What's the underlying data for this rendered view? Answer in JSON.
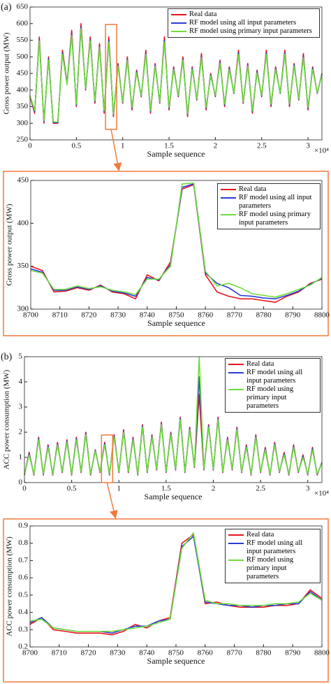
{
  "chart_data": [
    {
      "type": "line",
      "label": "(a)",
      "xlabel": "Sample sequence",
      "ylabel": "Gross power output (MW)",
      "x_offset_label": "×10⁴",
      "xlim": [
        0,
        31500
      ],
      "ylim": [
        250,
        650
      ],
      "xticks": [
        0,
        {
          "value": 5000,
          "label": "0.5"
        },
        {
          "value": 10000,
          "label": "1"
        },
        {
          "value": 15000,
          "label": "1.5"
        },
        {
          "value": 20000,
          "label": "2"
        },
        {
          "value": 25000,
          "label": "2.5"
        },
        {
          "value": 30000,
          "label": "3"
        }
      ],
      "yticks": [
        250,
        300,
        350,
        400,
        450,
        500,
        550,
        600,
        650
      ],
      "x": [
        0,
        500,
        1000,
        1500,
        2000,
        2500,
        3000,
        3500,
        4000,
        4500,
        5000,
        5500,
        6000,
        6500,
        7000,
        7500,
        8000,
        8500,
        9000,
        9500,
        10000,
        10500,
        11000,
        11500,
        12000,
        12500,
        13000,
        13500,
        14000,
        14500,
        15000,
        15500,
        16000,
        16500,
        17000,
        17500,
        18000,
        18500,
        19000,
        19500,
        20000,
        20500,
        21000,
        21500,
        22000,
        22500,
        23000,
        23500,
        24000,
        24500,
        25000,
        25500,
        26000,
        26500,
        27000,
        27500,
        28000,
        28500,
        29000,
        29500,
        30000,
        30500,
        31000,
        31500
      ],
      "series": [
        {
          "name": "Real data",
          "color": "#e8141c",
          "values": [
            380,
            330,
            560,
            300,
            500,
            300,
            300,
            520,
            420,
            580,
            350,
            600,
            400,
            560,
            360,
            540,
            330,
            560,
            320,
            480,
            360,
            500,
            340,
            460,
            380,
            520,
            330,
            480,
            360,
            560,
            340,
            470,
            380,
            500,
            320,
            470,
            370,
            510,
            340,
            450,
            380,
            490,
            350,
            470,
            390,
            520,
            360,
            480,
            330,
            460,
            380,
            520,
            350,
            470,
            390,
            520,
            350,
            480,
            370,
            510,
            340,
            470,
            390,
            450
          ]
        },
        {
          "name": "RF model using all input parameters",
          "color": "#2b3bd6",
          "values": [
            382,
            335,
            552,
            305,
            495,
            302,
            302,
            512,
            418,
            570,
            355,
            590,
            402,
            552,
            365,
            532,
            335,
            550,
            325,
            475,
            362,
            494,
            345,
            456,
            382,
            512,
            335,
            476,
            362,
            550,
            345,
            466,
            382,
            494,
            325,
            466,
            372,
            502,
            345,
            446,
            382,
            484,
            355,
            466,
            390,
            512,
            362,
            476,
            335,
            456,
            382,
            512,
            355,
            466,
            390,
            512,
            355,
            476,
            372,
            502,
            345,
            466,
            390,
            448
          ]
        },
        {
          "name": "RF model using primary input parameters",
          "color": "#6fdc3c",
          "values": [
            384,
            338,
            548,
            308,
            490,
            304,
            304,
            508,
            416,
            565,
            358,
            585,
            404,
            548,
            368,
            528,
            338,
            545,
            328,
            472,
            364,
            490,
            348,
            452,
            384,
            508,
            338,
            472,
            364,
            545,
            348,
            462,
            384,
            490,
            328,
            462,
            374,
            498,
            348,
            443,
            384,
            480,
            358,
            462,
            392,
            508,
            364,
            472,
            338,
            452,
            384,
            508,
            358,
            462,
            392,
            508,
            358,
            472,
            374,
            498,
            348,
            462,
            392,
            446
          ]
        }
      ]
    },
    {
      "type": "line",
      "xlabel": "Sample sequence",
      "ylabel": "Gross power output (MW)",
      "xlim": [
        8700,
        8800
      ],
      "ylim": [
        300,
        450
      ],
      "xticks": [
        8700,
        8710,
        8720,
        8730,
        8740,
        8750,
        8760,
        8770,
        8780,
        8790,
        8800
      ],
      "yticks": [
        300,
        350,
        400,
        450
      ],
      "x": [
        8700,
        8704,
        8708,
        8712,
        8716,
        8720,
        8724,
        8728,
        8732,
        8736,
        8740,
        8744,
        8748,
        8752,
        8756,
        8760,
        8764,
        8768,
        8772,
        8776,
        8780,
        8784,
        8788,
        8792,
        8796,
        8800
      ],
      "series": [
        {
          "name": "Real data",
          "color": "#e8141c",
          "values": [
            350,
            345,
            320,
            321,
            325,
            322,
            328,
            320,
            318,
            312,
            340,
            333,
            355,
            440,
            445,
            340,
            320,
            315,
            312,
            312,
            310,
            308,
            315,
            320,
            330,
            335
          ]
        },
        {
          "name": "RF model using all input parameters",
          "color": "#2b3bd6",
          "values": [
            347,
            343,
            322,
            322,
            326,
            323,
            327,
            321,
            319,
            315,
            337,
            334,
            352,
            442,
            446,
            342,
            330,
            325,
            316,
            315,
            313,
            312,
            316,
            321,
            329,
            336
          ]
        },
        {
          "name": "RF model using primary input parameters",
          "color": "#6fdc3c",
          "values": [
            345,
            342,
            323,
            323,
            327,
            324,
            326,
            322,
            320,
            317,
            335,
            335,
            350,
            446,
            447,
            344,
            327,
            330,
            325,
            318,
            316,
            314,
            318,
            323,
            328,
            337
          ]
        }
      ]
    },
    {
      "type": "line",
      "label": "(b)",
      "xlabel": "Sample sequence",
      "ylabel": "ACC power consumption (MW)",
      "x_offset_label": "×10⁴",
      "xlim": [
        0,
        31500
      ],
      "ylim": [
        0,
        5
      ],
      "xticks": [
        0,
        {
          "value": 5000,
          "label": "0.5"
        },
        {
          "value": 10000,
          "label": "1"
        },
        {
          "value": 15000,
          "label": "1.5"
        },
        {
          "value": 20000,
          "label": "2"
        },
        {
          "value": 25000,
          "label": "2.5"
        },
        {
          "value": 30000,
          "label": "3"
        }
      ],
      "yticks": [
        0,
        1,
        2,
        3,
        4,
        5
      ],
      "x": [
        0,
        500,
        1000,
        1500,
        2000,
        2500,
        3000,
        3500,
        4000,
        4500,
        5000,
        5500,
        6000,
        6500,
        7000,
        7500,
        8000,
        8500,
        9000,
        9500,
        10000,
        10500,
        11000,
        11500,
        12000,
        12500,
        13000,
        13500,
        14000,
        14500,
        15000,
        15500,
        16000,
        16500,
        17000,
        17500,
        18000,
        18500,
        19000,
        19500,
        20000,
        20500,
        21000,
        21500,
        22000,
        22500,
        23000,
        23500,
        24000,
        24500,
        25000,
        25500,
        26000,
        26500,
        27000,
        27500,
        28000,
        28500,
        29000,
        29500,
        30000,
        30500,
        31000,
        31500
      ],
      "series": [
        {
          "name": "Real data",
          "color": "#e8141c",
          "values": [
            0.3,
            1.2,
            0.3,
            1.8,
            0.3,
            1.5,
            0.3,
            1.6,
            0.4,
            1.7,
            0.3,
            1.8,
            0.4,
            2.0,
            0.3,
            1.3,
            0.4,
            1.6,
            0.3,
            1.9,
            0.4,
            2.1,
            0.4,
            1.8,
            0.3,
            2.3,
            0.4,
            1.9,
            0.5,
            2.4,
            0.4,
            2.0,
            0.5,
            2.6,
            0.4,
            2.2,
            0.6,
            3.5,
            0.5,
            2.3,
            0.5,
            2.6,
            0.4,
            1.8,
            0.5,
            2.2,
            0.4,
            1.5,
            0.3,
            1.9,
            0.4,
            1.4,
            0.3,
            1.6,
            0.4,
            1.2,
            0.3,
            1.5,
            0.4,
            1.1,
            0.3,
            1.4,
            0.3,
            0.8
          ]
        },
        {
          "name": "RF model using all input parameters",
          "color": "#2b3bd6",
          "values": [
            0.32,
            1.15,
            0.32,
            1.75,
            0.32,
            1.45,
            0.32,
            1.55,
            0.42,
            1.65,
            0.32,
            1.75,
            0.42,
            1.95,
            0.32,
            1.28,
            0.42,
            1.55,
            0.32,
            1.85,
            0.42,
            2.05,
            0.42,
            1.75,
            0.32,
            2.25,
            0.42,
            1.85,
            0.52,
            2.35,
            0.42,
            1.95,
            0.52,
            2.55,
            0.42,
            2.15,
            0.62,
            4.2,
            0.52,
            2.25,
            0.52,
            2.55,
            0.42,
            1.75,
            0.52,
            2.15,
            0.42,
            1.45,
            0.32,
            1.85,
            0.42,
            1.35,
            0.32,
            1.55,
            0.42,
            1.15,
            0.32,
            1.45,
            0.42,
            1.05,
            0.32,
            1.35,
            0.32,
            0.78
          ]
        },
        {
          "name": "RF model using primary input parameters",
          "color": "#6fdc3c",
          "values": [
            0.34,
            1.1,
            0.34,
            1.7,
            0.34,
            1.4,
            0.34,
            1.5,
            0.44,
            1.6,
            0.34,
            1.7,
            0.44,
            1.9,
            0.34,
            1.25,
            0.44,
            1.5,
            0.34,
            1.8,
            0.44,
            2.0,
            0.44,
            1.7,
            0.34,
            2.2,
            0.44,
            1.8,
            0.54,
            2.3,
            0.44,
            1.9,
            0.54,
            2.5,
            0.44,
            2.1,
            0.64,
            5.0,
            0.54,
            2.2,
            0.54,
            2.5,
            0.44,
            1.7,
            0.54,
            2.1,
            0.44,
            1.4,
            0.34,
            1.8,
            0.44,
            1.3,
            0.34,
            1.5,
            0.44,
            1.1,
            0.34,
            1.4,
            0.44,
            1.0,
            0.34,
            1.3,
            0.34,
            0.76
          ]
        }
      ]
    },
    {
      "type": "line",
      "xlabel": "Sample sequence",
      "ylabel": "ACC power consumption (MW)",
      "xlim": [
        8700,
        8800
      ],
      "ylim": [
        0.2,
        0.9
      ],
      "xticks": [
        8700,
        8710,
        8720,
        8730,
        8740,
        8750,
        8760,
        8770,
        8780,
        8790,
        8800
      ],
      "yticks": [
        0.2,
        0.3,
        0.4,
        0.5,
        0.6,
        0.7,
        0.8,
        0.9
      ],
      "x": [
        8700,
        8704,
        8708,
        8712,
        8716,
        8720,
        8724,
        8728,
        8732,
        8736,
        8740,
        8744,
        8748,
        8752,
        8756,
        8760,
        8764,
        8768,
        8772,
        8776,
        8780,
        8784,
        8788,
        8792,
        8796,
        8800
      ],
      "series": [
        {
          "name": "Real data",
          "color": "#e8141c",
          "values": [
            0.33,
            0.37,
            0.3,
            0.29,
            0.28,
            0.28,
            0.28,
            0.27,
            0.29,
            0.33,
            0.31,
            0.35,
            0.37,
            0.8,
            0.85,
            0.45,
            0.46,
            0.44,
            0.43,
            0.43,
            0.43,
            0.44,
            0.44,
            0.45,
            0.53,
            0.48
          ]
        },
        {
          "name": "RF model using all input parameters",
          "color": "#2b3bd6",
          "values": [
            0.34,
            0.37,
            0.31,
            0.3,
            0.29,
            0.29,
            0.29,
            0.28,
            0.3,
            0.32,
            0.32,
            0.35,
            0.36,
            0.78,
            0.84,
            0.46,
            0.45,
            0.44,
            0.44,
            0.43,
            0.44,
            0.44,
            0.45,
            0.45,
            0.52,
            0.47
          ]
        },
        {
          "name": "RF model using primary input parameters",
          "color": "#6fdc3c",
          "values": [
            0.35,
            0.36,
            0.31,
            0.3,
            0.29,
            0.29,
            0.29,
            0.29,
            0.3,
            0.31,
            0.32,
            0.34,
            0.36,
            0.77,
            0.86,
            0.47,
            0.45,
            0.45,
            0.44,
            0.44,
            0.44,
            0.45,
            0.45,
            0.46,
            0.51,
            0.47
          ]
        }
      ]
    }
  ]
}
